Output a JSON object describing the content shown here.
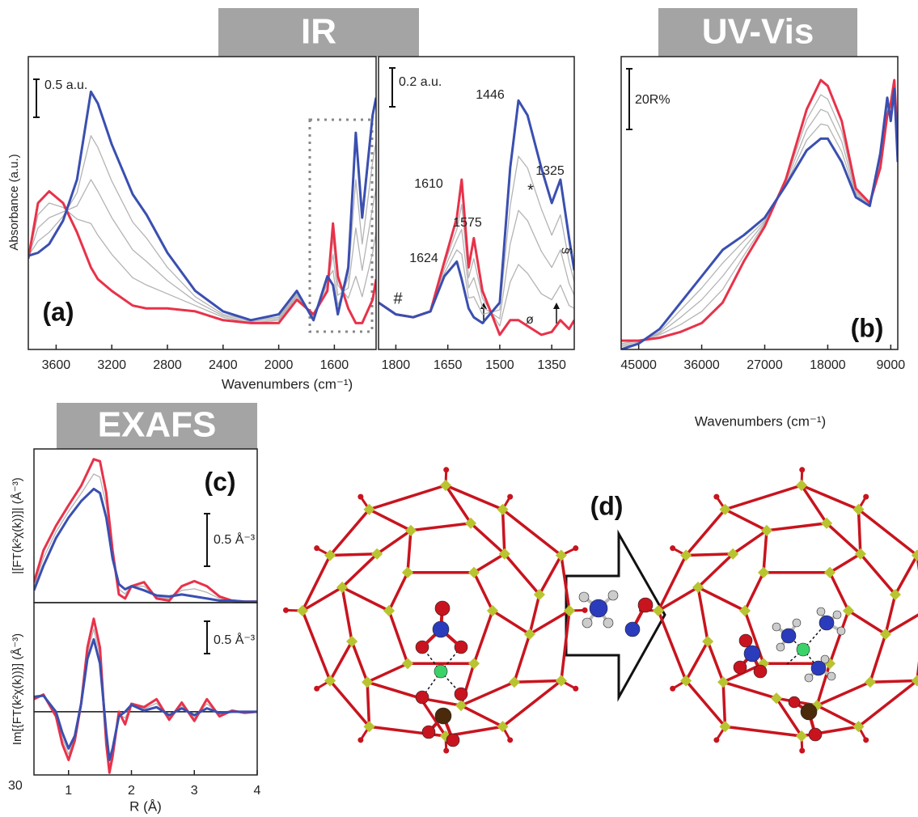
{
  "headers": {
    "ir": "IR",
    "uvvis": "UV-Vis",
    "exafs": "EXAFS"
  },
  "stray_text": "30",
  "chart_data": [
    {
      "type": "line",
      "panel_label": "(a)",
      "xlabel": "Wavenumbers (cm⁻¹)",
      "ylabel": "Absorbance (a.u.)",
      "scale_bar": "0.5 a.u.",
      "xlim": [
        3800,
        1300
      ],
      "xticks": [
        3600,
        3200,
        2800,
        2400,
        2000,
        1600
      ],
      "ylim": [
        0,
        1
      ],
      "x": [
        3800,
        3730,
        3650,
        3550,
        3450,
        3350,
        3300,
        3200,
        3050,
        2950,
        2800,
        2600,
        2400,
        2200,
        2000,
        1870,
        1750,
        1650,
        1610,
        1575,
        1500,
        1446,
        1400,
        1325,
        1300
      ],
      "series": [
        {
          "color": "#b4b4b4",
          "width": 1.3,
          "values": [
            0.31,
            0.46,
            0.5,
            0.485,
            0.445,
            0.43,
            0.39,
            0.325,
            0.245,
            0.22,
            0.19,
            0.15,
            0.11,
            0.09,
            0.1,
            0.18,
            0.11,
            0.21,
            0.38,
            0.22,
            0.175,
            0.25,
            0.18,
            0.33,
            0.4
          ]
        },
        {
          "color": "#b4b4b4",
          "width": 1.3,
          "values": [
            0.315,
            0.415,
            0.45,
            0.47,
            0.49,
            0.58,
            0.54,
            0.45,
            0.34,
            0.3,
            0.235,
            0.165,
            0.115,
            0.095,
            0.105,
            0.185,
            0.11,
            0.225,
            0.325,
            0.185,
            0.21,
            0.415,
            0.27,
            0.485,
            0.55
          ]
        },
        {
          "color": "#b4b4b4",
          "width": 1.3,
          "values": [
            0.32,
            0.37,
            0.4,
            0.455,
            0.535,
            0.73,
            0.69,
            0.575,
            0.435,
            0.38,
            0.28,
            0.18,
            0.12,
            0.1,
            0.11,
            0.19,
            0.1,
            0.24,
            0.27,
            0.15,
            0.245,
            0.58,
            0.36,
            0.64,
            0.71
          ]
        },
        {
          "color": "#e8324a",
          "width": 3,
          "values": [
            0.31,
            0.5,
            0.54,
            0.5,
            0.4,
            0.28,
            0.24,
            0.2,
            0.15,
            0.14,
            0.14,
            0.13,
            0.1,
            0.09,
            0.09,
            0.17,
            0.12,
            0.2,
            0.43,
            0.25,
            0.14,
            0.09,
            0.09,
            0.17,
            0.24
          ]
        },
        {
          "color": "#3a4fb0",
          "width": 3,
          "values": [
            0.32,
            0.33,
            0.36,
            0.44,
            0.58,
            0.88,
            0.84,
            0.7,
            0.53,
            0.46,
            0.33,
            0.2,
            0.13,
            0.1,
            0.12,
            0.2,
            0.1,
            0.25,
            0.22,
            0.12,
            0.28,
            0.74,
            0.45,
            0.8,
            0.86
          ]
        }
      ]
    },
    {
      "type": "line",
      "scale_bar": "0.2 a.u.",
      "xlim": [
        1850,
        1285
      ],
      "xticks": [
        1800,
        1650,
        1500,
        1350
      ],
      "ylim": [
        0,
        1
      ],
      "annotations": [
        "1446",
        "1325",
        "1610",
        "1575",
        "1624",
        "#",
        "*",
        "§",
        "ø"
      ],
      "x": [
        1850,
        1800,
        1750,
        1700,
        1660,
        1624,
        1610,
        1590,
        1575,
        1550,
        1500,
        1470,
        1446,
        1420,
        1380,
        1350,
        1325,
        1300,
        1285
      ],
      "series": [
        {
          "color": "#b4b4b4",
          "width": 1.3,
          "values": [
            0.16,
            0.12,
            0.11,
            0.13,
            0.29,
            0.41,
            0.495,
            0.245,
            0.31,
            0.175,
            0.08,
            0.23,
            0.29,
            0.26,
            0.19,
            0.17,
            0.22,
            0.15,
            0.14
          ]
        },
        {
          "color": "#b4b4b4",
          "width": 1.3,
          "values": [
            0.16,
            0.12,
            0.11,
            0.13,
            0.275,
            0.375,
            0.41,
            0.21,
            0.245,
            0.145,
            0.105,
            0.36,
            0.475,
            0.44,
            0.335,
            0.28,
            0.34,
            0.225,
            0.185
          ]
        },
        {
          "color": "#b4b4b4",
          "width": 1.3,
          "values": [
            0.16,
            0.12,
            0.11,
            0.13,
            0.26,
            0.34,
            0.325,
            0.175,
            0.18,
            0.12,
            0.135,
            0.49,
            0.66,
            0.62,
            0.48,
            0.39,
            0.46,
            0.3,
            0.23
          ]
        },
        {
          "color": "#e8324a",
          "width": 3,
          "values": [
            0.16,
            0.12,
            0.11,
            0.13,
            0.3,
            0.45,
            0.58,
            0.28,
            0.38,
            0.2,
            0.05,
            0.1,
            0.1,
            0.08,
            0.05,
            0.06,
            0.1,
            0.07,
            0.1
          ]
        },
        {
          "color": "#3a4fb0",
          "width": 3,
          "values": [
            0.16,
            0.12,
            0.11,
            0.13,
            0.25,
            0.3,
            0.24,
            0.14,
            0.11,
            0.09,
            0.16,
            0.62,
            0.85,
            0.8,
            0.62,
            0.5,
            0.58,
            0.38,
            0.27
          ]
        }
      ]
    },
    {
      "type": "line",
      "panel_label": "(b)",
      "xlabel": "Wavenumbers (cm⁻¹)",
      "scale_bar": "20R%",
      "xlim": [
        47500,
        8000
      ],
      "xticks": [
        45000,
        36000,
        27000,
        18000,
        9000
      ],
      "ylim": [
        0,
        1
      ],
      "x": [
        47500,
        45000,
        42000,
        39000,
        36000,
        33000,
        30000,
        27000,
        24000,
        21000,
        19000,
        18000,
        16000,
        14000,
        12000,
        10500,
        9500,
        9000,
        8500,
        8000
      ],
      "series": [
        {
          "color": "#b4b4b4",
          "width": 1.3,
          "values": [
            0.02,
            0.03,
            0.05,
            0.085,
            0.13,
            0.205,
            0.32,
            0.43,
            0.575,
            0.785,
            0.87,
            0.855,
            0.745,
            0.54,
            0.5,
            0.63,
            0.815,
            0.825,
            0.91,
            0.69
          ]
        },
        {
          "color": "#b4b4b4",
          "width": 1.3,
          "values": [
            0.015,
            0.025,
            0.055,
            0.11,
            0.17,
            0.25,
            0.345,
            0.435,
            0.57,
            0.75,
            0.82,
            0.81,
            0.71,
            0.535,
            0.495,
            0.645,
            0.83,
            0.81,
            0.905,
            0.67
          ]
        },
        {
          "color": "#b4b4b4",
          "width": 1.3,
          "values": [
            0.01,
            0.02,
            0.06,
            0.135,
            0.21,
            0.295,
            0.37,
            0.44,
            0.5625,
            0.715,
            0.77,
            0.765,
            0.675,
            0.53,
            0.49,
            0.66,
            0.845,
            0.795,
            0.9,
            0.66
          ]
        },
        {
          "color": "#e8324a",
          "width": 3,
          "values": [
            0.03,
            0.03,
            0.04,
            0.06,
            0.09,
            0.16,
            0.3,
            0.42,
            0.58,
            0.82,
            0.92,
            0.9,
            0.78,
            0.55,
            0.5,
            0.62,
            0.8,
            0.84,
            0.92,
            0.7
          ]
        },
        {
          "color": "#3a4fb0",
          "width": 3,
          "values": [
            0,
            0.02,
            0.07,
            0.16,
            0.25,
            0.34,
            0.39,
            0.45,
            0.56,
            0.68,
            0.72,
            0.72,
            0.64,
            0.52,
            0.49,
            0.67,
            0.86,
            0.78,
            0.89,
            0.64
          ]
        }
      ]
    },
    {
      "type": "line",
      "panel_label": "(c)",
      "ylabel": "|[FT(k²χ(k))]| (Å⁻³)",
      "scale_bar": "0.5 Å⁻³",
      "xlim": [
        0.45,
        4
      ],
      "ylim": [
        0,
        1.5
      ],
      "x": [
        0.45,
        0.6,
        0.8,
        1.0,
        1.2,
        1.4,
        1.5,
        1.6,
        1.7,
        1.8,
        1.9,
        2.0,
        2.2,
        2.4,
        2.6,
        2.8,
        3.0,
        3.2,
        3.4,
        3.6,
        3.8,
        4.0
      ],
      "series": [
        {
          "color": "#b4b4b4",
          "width": 1.3,
          "values": [
            0.16,
            0.435,
            0.69,
            0.89,
            1.065,
            1.255,
            1.225,
            0.95,
            0.47,
            0.13,
            0.085,
            0.16,
            0.16,
            0.055,
            0.04,
            0.12,
            0.135,
            0.1,
            0.04,
            0.02,
            0.01,
            0.01
          ]
        },
        {
          "color": "#e8324a",
          "width": 3,
          "values": [
            0.2,
            0.51,
            0.75,
            0.95,
            1.14,
            1.4,
            1.38,
            1.07,
            0.51,
            0.08,
            0.04,
            0.16,
            0.2,
            0.04,
            0.02,
            0.16,
            0.21,
            0.16,
            0.06,
            0.02,
            0.01,
            0.01
          ]
        },
        {
          "color": "#3a4fb0",
          "width": 3,
          "values": [
            0.12,
            0.36,
            0.63,
            0.83,
            0.99,
            1.11,
            1.07,
            0.83,
            0.43,
            0.18,
            0.13,
            0.16,
            0.12,
            0.07,
            0.06,
            0.08,
            0.06,
            0.04,
            0.02,
            0.02,
            0.01,
            0.01
          ]
        }
      ]
    },
    {
      "type": "line",
      "ylabel": "Im[{FT(k²χ(k))}] (Å⁻³)",
      "xlabel": "R (Å)",
      "scale_bar": "0.5 Å⁻³",
      "xlim": [
        0.45,
        4
      ],
      "xticks": [
        1,
        2,
        3,
        4
      ],
      "ylim": [
        -0.55,
        0.95
      ],
      "x": [
        0.45,
        0.6,
        0.8,
        0.9,
        1.0,
        1.1,
        1.2,
        1.3,
        1.4,
        1.5,
        1.6,
        1.65,
        1.7,
        1.8,
        1.9,
        2.0,
        2.2,
        2.4,
        2.6,
        2.8,
        3.0,
        3.2,
        3.4,
        3.6,
        3.8,
        4.0
      ],
      "series": [
        {
          "color": "#b4b4b4",
          "width": 1.3,
          "values": [
            0.12,
            0.145,
            -0.02,
            -0.23,
            -0.37,
            -0.23,
            0.07,
            0.51,
            0.72,
            0.49,
            -0.23,
            -0.475,
            -0.355,
            -0.02,
            -0.055,
            0.065,
            0.025,
            0.075,
            -0.05,
            0.055,
            -0.055,
            0.07,
            -0.025,
            0.005,
            -0.005,
            0
          ]
        },
        {
          "color": "#e8324a",
          "width": 3,
          "values": [
            0.11,
            0.15,
            -0.04,
            -0.28,
            -0.42,
            -0.25,
            0.07,
            0.56,
            0.81,
            0.56,
            -0.28,
            -0.53,
            -0.39,
            0,
            -0.11,
            0.07,
            0.04,
            0.11,
            -0.07,
            0.08,
            -0.08,
            0.11,
            -0.04,
            0.01,
            -0.01,
            0
          ]
        },
        {
          "color": "#3a4fb0",
          "width": 3,
          "values": [
            0.13,
            0.14,
            0,
            -0.18,
            -0.32,
            -0.21,
            0.07,
            0.46,
            0.63,
            0.42,
            -0.18,
            -0.42,
            -0.32,
            -0.04,
            0,
            0.06,
            0.01,
            0.04,
            -0.03,
            0.03,
            -0.03,
            0.03,
            -0.01,
            0,
            0,
            0
          ]
        }
      ]
    }
  ],
  "diagram": {
    "label": "(d)"
  }
}
